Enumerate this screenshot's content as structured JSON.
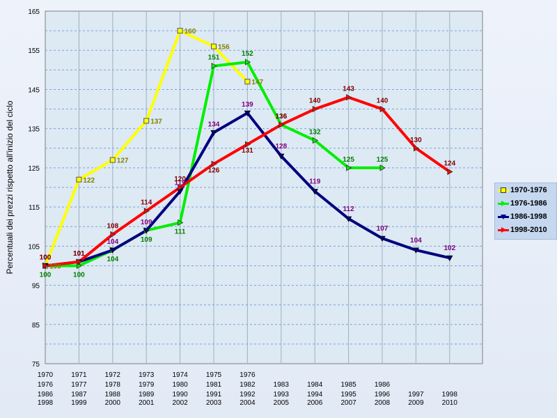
{
  "chart_data": {
    "type": "line",
    "ylabel": "Percentuali dei prezzi rispetto all'inizio del ciclo",
    "ylim": [
      75,
      165
    ],
    "yticks": [
      75,
      85,
      95,
      105,
      115,
      125,
      135,
      145,
      155,
      165
    ],
    "grid": true,
    "legend_position": "right",
    "x_labels": [
      [
        "1970",
        "1976",
        "1986",
        "1998"
      ],
      [
        "1971",
        "1977",
        "1987",
        "1999"
      ],
      [
        "1972",
        "1978",
        "1988",
        "2000"
      ],
      [
        "1973",
        "1979",
        "1989",
        "2001"
      ],
      [
        "1974",
        "1980",
        "1990",
        "2002"
      ],
      [
        "1975",
        "1981",
        "1991",
        "2003"
      ],
      [
        "1976",
        "1982",
        "1992",
        "2004"
      ],
      [
        "1983",
        "1993",
        "2005"
      ],
      [
        "1984",
        "1994",
        "2006"
      ],
      [
        "1985",
        "1995",
        "2007"
      ],
      [
        "1986",
        "1996",
        "2008"
      ],
      [
        "1997",
        "2009"
      ],
      [
        "1998",
        "2010"
      ]
    ],
    "series": [
      {
        "name": "1970-1976",
        "color": "#ffff00",
        "marker": "square",
        "label_color": "#808000",
        "values": [
          100,
          122,
          127,
          137,
          160,
          156,
          147
        ]
      },
      {
        "name": "1976-1986",
        "color": "#00ee00",
        "marker": "triangle-right",
        "label_color": "#008000",
        "values": [
          100,
          100,
          104,
          109,
          111,
          151,
          152,
          136,
          132,
          125,
          125
        ]
      },
      {
        "name": "1986-1998",
        "color": "#000080",
        "marker": "triangle-down",
        "label_color": "#800080",
        "values": [
          100,
          101,
          104,
          109,
          119,
          134,
          139,
          128,
          119,
          112,
          107,
          104,
          102
        ]
      },
      {
        "name": "1998-2010",
        "color": "#ff0000",
        "marker": "triangle-right",
        "label_color": "#800000",
        "values": [
          100,
          101,
          108,
          114,
          120,
          126,
          131,
          136,
          140,
          143,
          140,
          130,
          124
        ]
      }
    ]
  }
}
